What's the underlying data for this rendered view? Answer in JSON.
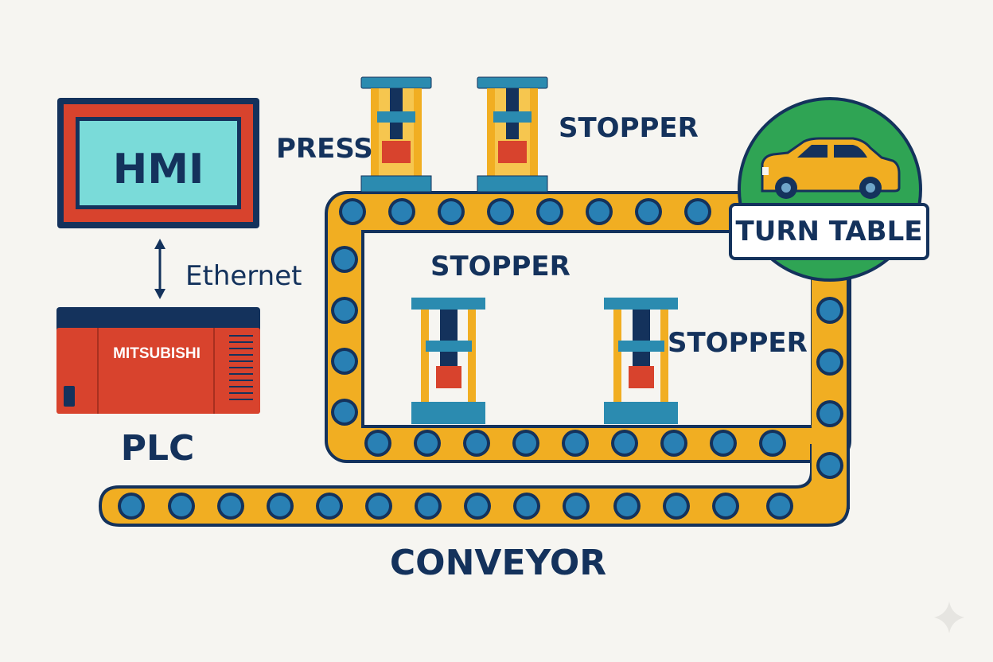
{
  "hmi": {
    "label": "HMI"
  },
  "link": {
    "label": "Ethernet"
  },
  "plc": {
    "brand": "MITSUBISHI",
    "label": "PLC"
  },
  "stations": {
    "press": "PRESS",
    "stopper_top": "STOPPER",
    "stopper_mid": "STOPPER",
    "stopper_right": "STOPPER"
  },
  "turntable": {
    "label": "TURN TABLE"
  },
  "conveyor": {
    "label": "CONVEYOR"
  },
  "colors": {
    "navy": "#14325c",
    "belt": "#f1ae22",
    "roller": "#2980b4",
    "plc_red": "#d8432d",
    "hmi_screen": "#7adbd9",
    "turntable_green": "#2fa454",
    "press_frame": "#f1ae22",
    "press_block": "#d8432d"
  }
}
